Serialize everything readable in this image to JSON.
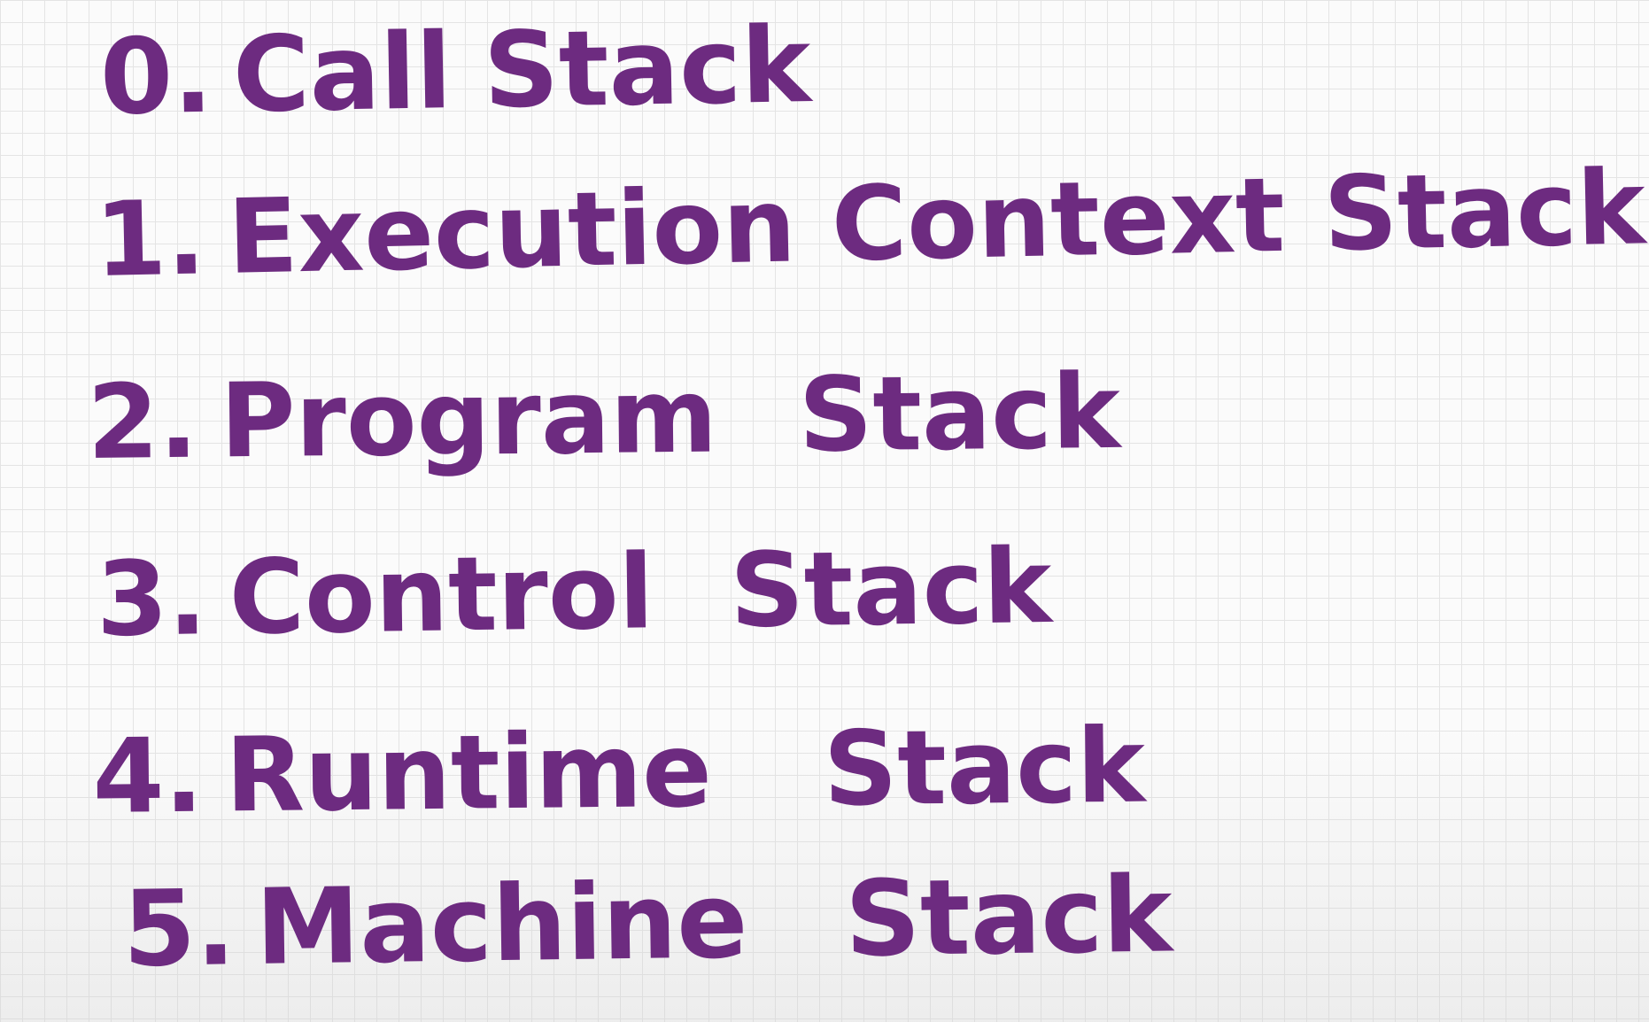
{
  "items": [
    {
      "number": "0.",
      "term": "Call",
      "word": "Stack"
    },
    {
      "number": "1.",
      "term": "Execution Context",
      "word": "Stack"
    },
    {
      "number": "2.",
      "term": "Program",
      "word": "Stack"
    },
    {
      "number": "3.",
      "term": "Control",
      "word": "Stack"
    },
    {
      "number": "4.",
      "term": "Runtime",
      "word": "Stack"
    },
    {
      "number": "5.",
      "term": "Machine",
      "word": "Stack"
    }
  ],
  "colors": {
    "ink": "#6d2b80",
    "paper": "#fbfbfb",
    "grid": "#e4e4e4"
  }
}
